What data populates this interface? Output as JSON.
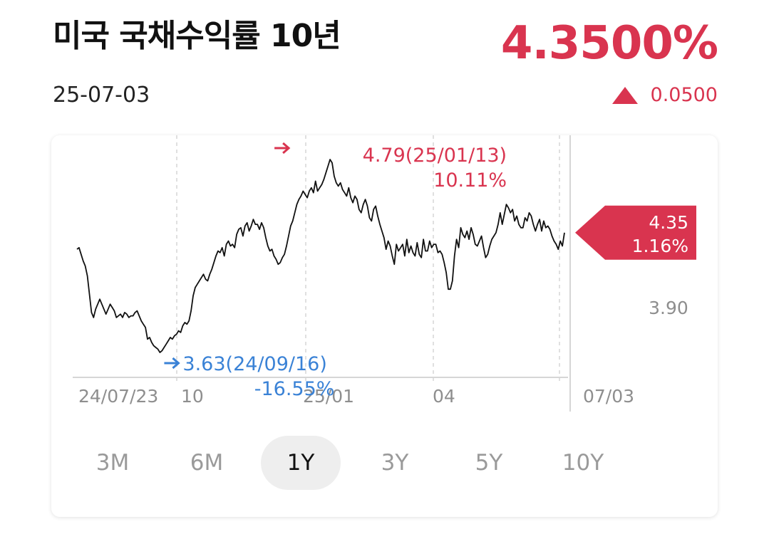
{
  "header": {
    "title": "미국 국채수익률 10년",
    "date": "25-07-03",
    "price": "4.3500%",
    "change": "0.0500",
    "change_direction": "up"
  },
  "colors": {
    "up": "#d9344f",
    "down": "#3a82d6",
    "line": "#111111",
    "grid": "#d6d6d6",
    "axis_text": "#8e8e8e"
  },
  "range_tabs": [
    {
      "label": "3M",
      "active": false
    },
    {
      "label": "6M",
      "active": false
    },
    {
      "label": "1Y",
      "active": true
    },
    {
      "label": "3Y",
      "active": false
    },
    {
      "label": "5Y",
      "active": false
    },
    {
      "label": "10Y",
      "active": false
    }
  ],
  "chart_data": {
    "type": "line",
    "ylim": [
      3.48,
      4.85
    ],
    "x_tick_labels": [
      "24/07/23",
      "10",
      "25/01",
      "04",
      "07/03"
    ],
    "y_tick_labels": [
      "3.90"
    ],
    "ref_value": 3.9,
    "current_value": 4.35,
    "current_label": "4.35",
    "current_pct": "1.16%",
    "high": {
      "value": 4.79,
      "label": "4.79(25/01/13)",
      "pct": "10.11%"
    },
    "low": {
      "value": 3.63,
      "label": "3.63(24/09/16)",
      "pct": "-16.55%"
    },
    "series": [
      {
        "values": [
          4.25,
          4.26,
          4.22,
          4.18,
          4.15,
          4.09,
          3.98,
          3.87,
          3.84,
          3.89,
          3.92,
          3.95,
          3.92,
          3.89,
          3.86,
          3.89,
          3.92,
          3.9,
          3.88,
          3.84,
          3.85,
          3.86,
          3.84,
          3.87,
          3.86,
          3.84,
          3.85,
          3.85,
          3.87,
          3.88,
          3.85,
          3.82,
          3.8,
          3.78,
          3.71,
          3.72,
          3.69,
          3.67,
          3.66,
          3.65,
          3.63,
          3.64,
          3.66,
          3.68,
          3.7,
          3.72,
          3.71,
          3.73,
          3.74,
          3.76,
          3.75,
          3.79,
          3.81,
          3.8,
          3.82,
          3.88,
          3.97,
          4.02,
          4.04,
          4.06,
          4.08,
          4.1,
          4.07,
          4.06,
          4.1,
          4.13,
          4.17,
          4.21,
          4.24,
          4.23,
          4.26,
          4.21,
          4.28,
          4.3,
          4.27,
          4.28,
          4.26,
          4.34,
          4.37,
          4.38,
          4.33,
          4.39,
          4.41,
          4.36,
          4.39,
          4.43,
          4.4,
          4.4,
          4.37,
          4.41,
          4.38,
          4.32,
          4.27,
          4.24,
          4.25,
          4.21,
          4.19,
          4.16,
          4.17,
          4.2,
          4.22,
          4.27,
          4.33,
          4.39,
          4.42,
          4.47,
          4.52,
          4.55,
          4.57,
          4.6,
          4.58,
          4.56,
          4.6,
          4.62,
          4.59,
          4.66,
          4.6,
          4.62,
          4.64,
          4.67,
          4.71,
          4.75,
          4.79,
          4.77,
          4.69,
          4.65,
          4.63,
          4.65,
          4.61,
          4.59,
          4.57,
          4.62,
          4.56,
          4.53,
          4.57,
          4.55,
          4.49,
          4.47,
          4.52,
          4.55,
          4.51,
          4.44,
          4.42,
          4.49,
          4.51,
          4.45,
          4.4,
          4.36,
          4.32,
          4.25,
          4.3,
          4.27,
          4.21,
          4.16,
          4.28,
          4.24,
          4.26,
          4.28,
          4.21,
          4.31,
          4.23,
          4.27,
          4.23,
          4.21,
          4.29,
          4.22,
          4.2,
          4.31,
          4.24,
          4.24,
          4.3,
          4.26,
          4.28,
          4.28,
          4.23,
          4.24,
          4.22,
          4.17,
          4.11,
          4.01,
          4.01,
          4.06,
          4.21,
          4.31,
          4.26,
          4.38,
          4.34,
          4.32,
          4.36,
          4.31,
          4.38,
          4.34,
          4.28,
          4.27,
          4.3,
          4.33,
          4.26,
          4.2,
          4.22,
          4.27,
          4.31,
          4.33,
          4.35,
          4.4,
          4.47,
          4.4,
          4.46,
          4.52,
          4.5,
          4.47,
          4.49,
          4.42,
          4.45,
          4.4,
          4.38,
          4.38,
          4.44,
          4.42,
          4.47,
          4.45,
          4.4,
          4.36,
          4.4,
          4.43,
          4.36,
          4.42,
          4.38,
          4.39,
          4.37,
          4.33,
          4.3,
          4.28,
          4.25,
          4.3,
          4.27,
          4.35
        ]
      }
    ]
  }
}
